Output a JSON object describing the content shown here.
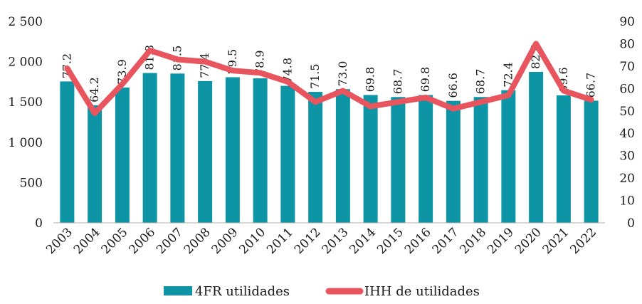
{
  "chart_data": {
    "type": "bar-line-combo",
    "categories": [
      "2003",
      "2004",
      "2005",
      "2006",
      "2007",
      "2008",
      "2009",
      "2010",
      "2011",
      "2012",
      "2013",
      "2014",
      "2015",
      "2016",
      "2017",
      "2018",
      "2019",
      "2020",
      "2021",
      "2022"
    ],
    "series": [
      {
        "name": "4FR utilidades",
        "type": "bar",
        "axis": "left",
        "color": "#0e95a5",
        "values": [
          77.2,
          64.2,
          73.9,
          81.8,
          81.5,
          77.4,
          79.5,
          78.9,
          74.8,
          71.5,
          73.0,
          69.8,
          68.7,
          69.8,
          66.6,
          68.7,
          72.4,
          82.4,
          69.6,
          66.7
        ],
        "data_labels": [
          "77.2",
          "64.2",
          "73.9",
          "81.8",
          "81.5",
          "77.4",
          "79.5",
          "78.9",
          "74.8",
          "71.5",
          "73.0",
          "69.8",
          "68.7",
          "69.8",
          "66.6",
          "68.7",
          "72.4",
          "82.4",
          "69.6",
          "66.7"
        ]
      },
      {
        "name": "IHH de utilidades",
        "type": "line",
        "axis": "right",
        "color": "#e8555e",
        "values": [
          69,
          49,
          62,
          77,
          73,
          72,
          68,
          67,
          63,
          54,
          59,
          52,
          54,
          56,
          51,
          54,
          57,
          80,
          59,
          55
        ]
      }
    ],
    "y_left": {
      "min": 0,
      "max": 2500,
      "ticks": [
        0,
        500,
        1000,
        1500,
        2000,
        2500
      ],
      "tick_labels": [
        "0",
        "500",
        "1 000",
        "1 500",
        "2 000",
        "2 500"
      ]
    },
    "y_right": {
      "min": 0,
      "max": 90,
      "ticks": [
        0,
        10,
        20,
        30,
        40,
        50,
        60,
        70,
        80,
        90
      ],
      "tick_labels": [
        "0",
        "10",
        "20",
        "30",
        "40",
        "50",
        "60",
        "70",
        "80",
        "90"
      ]
    },
    "grid": false,
    "legend": {
      "position": "bottom-center"
    },
    "title": "",
    "xlabel": "",
    "ylabel": ""
  }
}
